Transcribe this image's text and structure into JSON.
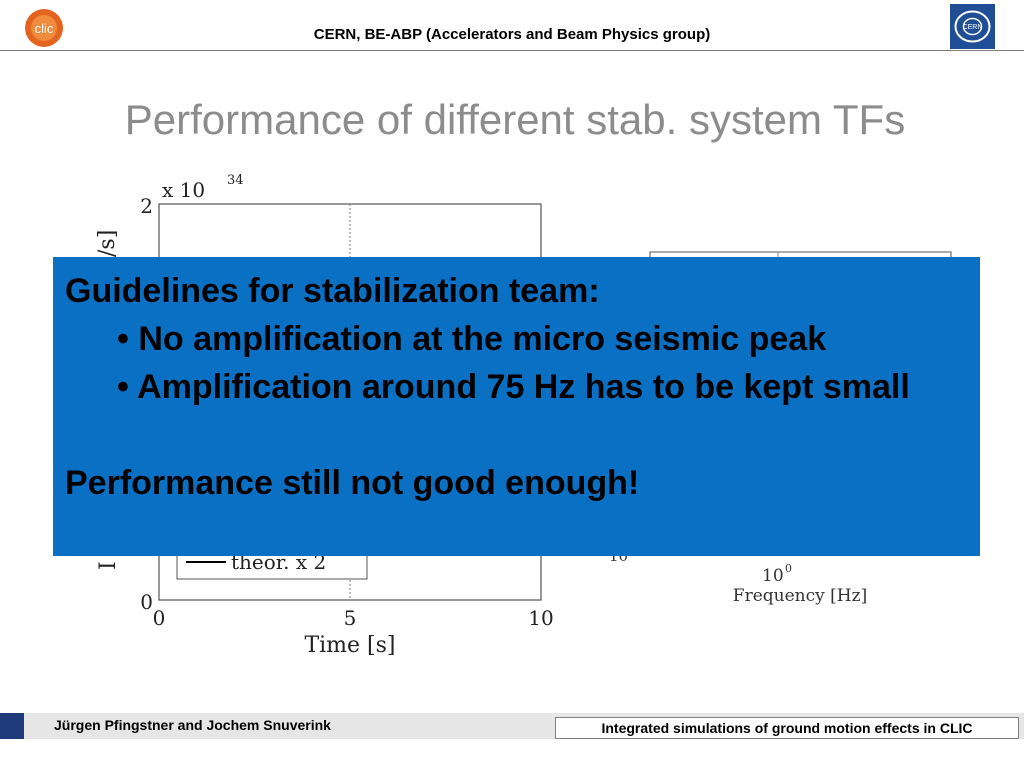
{
  "header": {
    "title": "CERN, BE-ABP (Accelerators and Beam Physics group)",
    "logo_left_text": "clic",
    "logo_right_text": "CERN"
  },
  "slide": {
    "title": "Performance of different stab. system TFs"
  },
  "chart_data": [
    {
      "type": "line",
      "multiplier": "x 10",
      "multiplier_exponent": "34",
      "x_tick_labels": [
        "0",
        "5",
        "10"
      ],
      "y_tick_labels": [
        "0",
        "2"
      ],
      "xlabel": "Time [s]",
      "ylabel_fragments": [
        "/s]",
        "I"
      ],
      "xlim": [
        0,
        10
      ],
      "ylim": [
        0,
        2
      ],
      "legend_visible_entry": "theor. x 2",
      "legend_position": "bottom-left",
      "grid": true
    },
    {
      "type": "line",
      "xlabel": "Frequency [Hz]",
      "x_tick_base": "10",
      "x_tick_exponent": "0",
      "y_tick_label_partial": "10",
      "grid": true
    }
  ],
  "overlay": {
    "heading": "Guidelines for stabilization team:",
    "bullets": [
      "• No amplification at the micro seismic peak",
      "• Amplification around 75 Hz has to be kept small"
    ],
    "conclusion": "Performance still not good enough!",
    "background_color": "#0a70c4"
  },
  "footer": {
    "author": "Jürgen Pfingstner and Jochem Snuverink",
    "talk_title": "Integrated simulations of ground motion effects in CLIC"
  }
}
